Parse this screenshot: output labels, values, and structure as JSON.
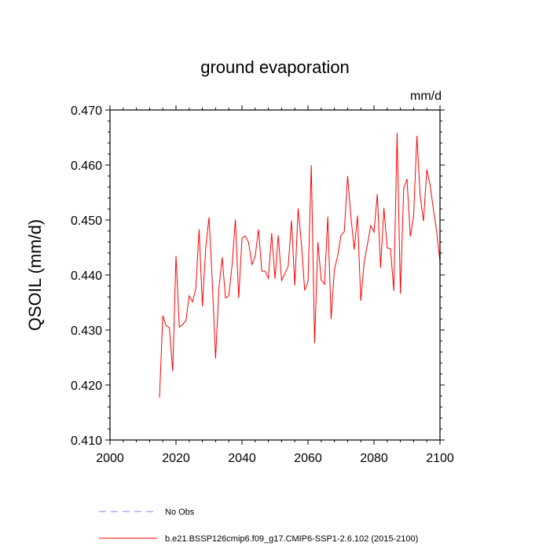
{
  "chart_data": {
    "type": "line",
    "title": "ground evaporation",
    "units": "mm/d",
    "xlabel": "",
    "ylabel": "QSOIL  (mm/d)",
    "xlim": [
      2000,
      2100
    ],
    "ylim": [
      0.41,
      0.47
    ],
    "x_ticks": [
      "2000",
      "2020",
      "2040",
      "2060",
      "2080",
      "2100"
    ],
    "y_ticks": [
      "0.410",
      "0.420",
      "0.430",
      "0.440",
      "0.450",
      "0.460",
      "0.470"
    ],
    "legend": [
      {
        "label": "No Obs",
        "color": "#8080ff",
        "dash": true
      },
      {
        "label": "b.e21.BSSP126cmip6.f09_g17.CMIP6-SSP1-2.6.102 (2015-2100)",
        "color": "#ff0000",
        "dash": false
      }
    ],
    "series": [
      {
        "name": "b.e21.BSSP126cmip6.f09_g17.CMIP6-SSP1-2.6.102 (2015-2100)",
        "color": "#ff0000",
        "x": [
          2015,
          2016,
          2017,
          2018,
          2019,
          2020,
          2021,
          2022,
          2023,
          2024,
          2025,
          2026,
          2027,
          2028,
          2029,
          2030,
          2031,
          2032,
          2033,
          2034,
          2035,
          2036,
          2037,
          2038,
          2039,
          2040,
          2041,
          2042,
          2043,
          2044,
          2045,
          2046,
          2047,
          2048,
          2049,
          2050,
          2051,
          2052,
          2053,
          2054,
          2055,
          2056,
          2057,
          2058,
          2059,
          2060,
          2061,
          2062,
          2063,
          2064,
          2065,
          2066,
          2067,
          2068,
          2069,
          2070,
          2071,
          2072,
          2073,
          2074,
          2075,
          2076,
          2077,
          2078,
          2079,
          2080,
          2081,
          2082,
          2083,
          2084,
          2085,
          2086,
          2087,
          2088,
          2089,
          2090,
          2091,
          2092,
          2093,
          2094,
          2095,
          2096,
          2097,
          2098,
          2099,
          2100
        ],
        "values": [
          0.4177,
          0.4326,
          0.4308,
          0.4304,
          0.4225,
          0.4435,
          0.4305,
          0.431,
          0.4317,
          0.4362,
          0.4351,
          0.4375,
          0.4483,
          0.4343,
          0.4449,
          0.4505,
          0.4388,
          0.4248,
          0.4375,
          0.4432,
          0.4358,
          0.4362,
          0.4418,
          0.4501,
          0.4358,
          0.4467,
          0.4471,
          0.4459,
          0.4419,
          0.4434,
          0.4483,
          0.4407,
          0.4407,
          0.4394,
          0.4476,
          0.4393,
          0.4472,
          0.439,
          0.4403,
          0.4416,
          0.4499,
          0.4381,
          0.4521,
          0.4458,
          0.4372,
          0.4388,
          0.46,
          0.4276,
          0.446,
          0.4391,
          0.4383,
          0.4506,
          0.432,
          0.441,
          0.4435,
          0.4472,
          0.4479,
          0.458,
          0.4506,
          0.4446,
          0.4508,
          0.4353,
          0.4423,
          0.4455,
          0.449,
          0.4478,
          0.4547,
          0.4413,
          0.4522,
          0.4449,
          0.4448,
          0.4371,
          0.4658,
          0.4366,
          0.4557,
          0.4575,
          0.447,
          0.4507,
          0.4653,
          0.4543,
          0.4498,
          0.4592,
          0.4564,
          0.4519,
          0.4479,
          0.4423
        ]
      }
    ]
  }
}
